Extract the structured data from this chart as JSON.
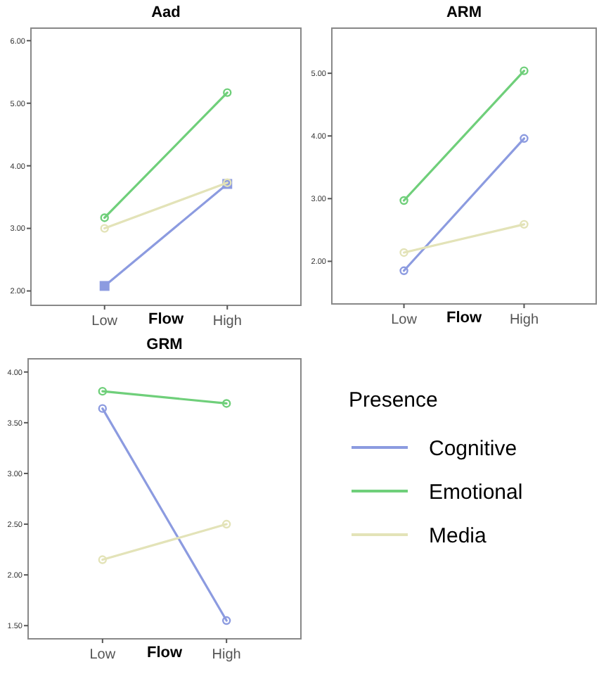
{
  "chart_data": [
    {
      "type": "line",
      "title": "Aad",
      "xlabel": "Flow",
      "categories": [
        "Low",
        "High"
      ],
      "ylim": [
        1.77,
        6.2
      ],
      "yticks": [
        {
          "value": 2,
          "label": "2.00"
        },
        {
          "value": 3,
          "label": "3.00"
        },
        {
          "value": 4,
          "label": "4.00"
        },
        {
          "value": 5,
          "label": "5.00"
        },
        {
          "value": 6,
          "label": "6.00"
        }
      ],
      "marker": "circle",
      "legend": false,
      "series": [
        {
          "color": "#8c9be0",
          "values": [
            2.08,
            3.71
          ],
          "marker": "square"
        },
        {
          "color": "#6fcf7a",
          "values": [
            3.17,
            5.17
          ]
        },
        {
          "color": "#e3e3b8",
          "values": [
            3.0,
            3.73
          ]
        }
      ]
    },
    {
      "type": "line",
      "title": "ARM",
      "xlabel": "Flow",
      "categories": [
        "Low",
        "High"
      ],
      "ylim": [
        1.32,
        5.72
      ],
      "yticks": [
        {
          "value": 2,
          "label": "2.00"
        },
        {
          "value": 3,
          "label": "3.00"
        },
        {
          "value": 4,
          "label": "4.00"
        },
        {
          "value": 5,
          "label": "5.00"
        }
      ],
      "marker": "circle",
      "legend": false,
      "series": [
        {
          "color": "#8c9be0",
          "values": [
            1.85,
            3.96
          ]
        },
        {
          "color": "#6fcf7a",
          "values": [
            2.97,
            5.04
          ]
        },
        {
          "color": "#e3e3b8",
          "values": [
            2.14,
            2.59
          ]
        }
      ]
    },
    {
      "type": "line",
      "title": "GRM",
      "xlabel": "Flow",
      "categories": [
        "Low",
        "High"
      ],
      "ylim": [
        1.37,
        4.13
      ],
      "yticks": [
        {
          "value": 1.5,
          "label": "1.50"
        },
        {
          "value": 2,
          "label": "2.00"
        },
        {
          "value": 2.5,
          "label": "2.50"
        },
        {
          "value": 3,
          "label": "3.00"
        },
        {
          "value": 3.5,
          "label": "3.50"
        },
        {
          "value": 4,
          "label": "4.00"
        }
      ],
      "marker": "circle",
      "legend": "right",
      "legend_title": "Presence",
      "series": [
        {
          "name": "Cognitive",
          "color": "#8c9be0",
          "values": [
            3.64,
            1.55
          ]
        },
        {
          "name": "Emotional",
          "color": "#6fcf7a",
          "values": [
            3.81,
            3.69
          ]
        },
        {
          "name": "Media",
          "color": "#e3e3b8",
          "values": [
            2.15,
            2.5
          ]
        }
      ]
    }
  ]
}
